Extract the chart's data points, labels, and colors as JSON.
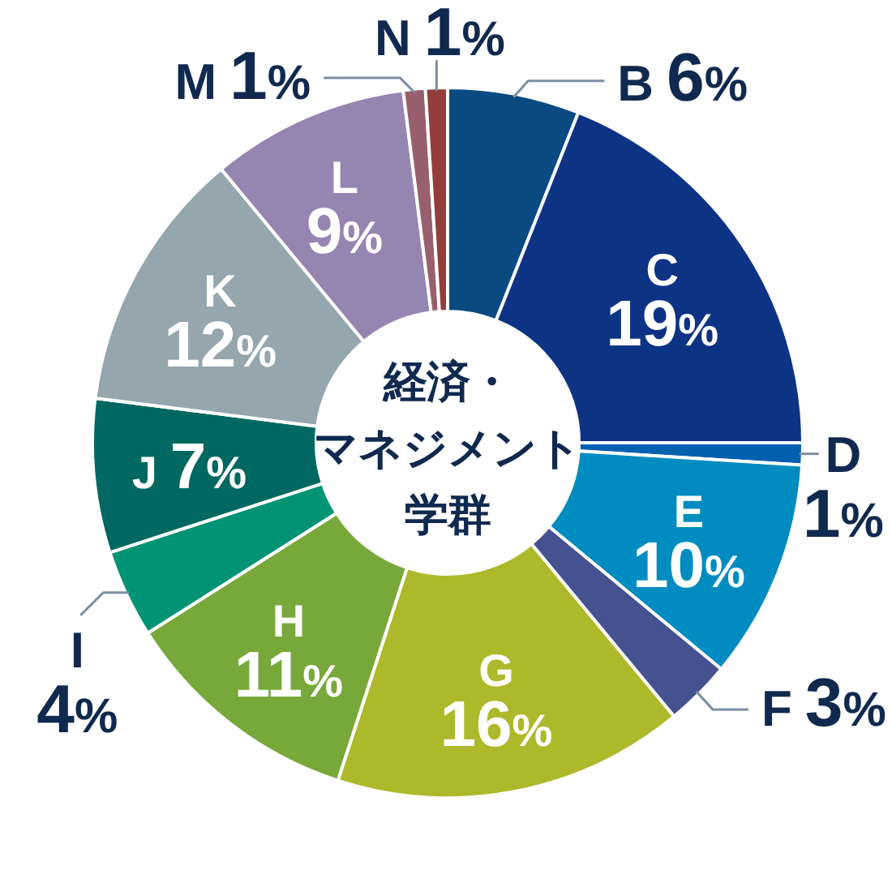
{
  "chart_data": {
    "type": "donut",
    "title": "経済・マネジメント学群",
    "categories": [
      "B",
      "C",
      "D",
      "E",
      "F",
      "G",
      "H",
      "I",
      "J",
      "K",
      "L",
      "M",
      "N"
    ],
    "values": [
      6,
      19,
      1,
      10,
      3,
      16,
      11,
      4,
      7,
      12,
      9,
      1,
      1
    ],
    "colors": [
      "#094b80",
      "#0d3384",
      "#0060b0",
      "#008cc1",
      "#46528f",
      "#adb92a",
      "#78a83a",
      "#009474",
      "#006860",
      "#95a6ae",
      "#9684b1",
      "#98606e",
      "#943e3c"
    ],
    "value_labels": [
      "6%",
      "19%",
      "1%",
      "10%",
      "3%",
      "16%",
      "11%",
      "4%",
      "7%",
      "12%",
      "9%",
      "1%",
      "1%"
    ]
  }
}
